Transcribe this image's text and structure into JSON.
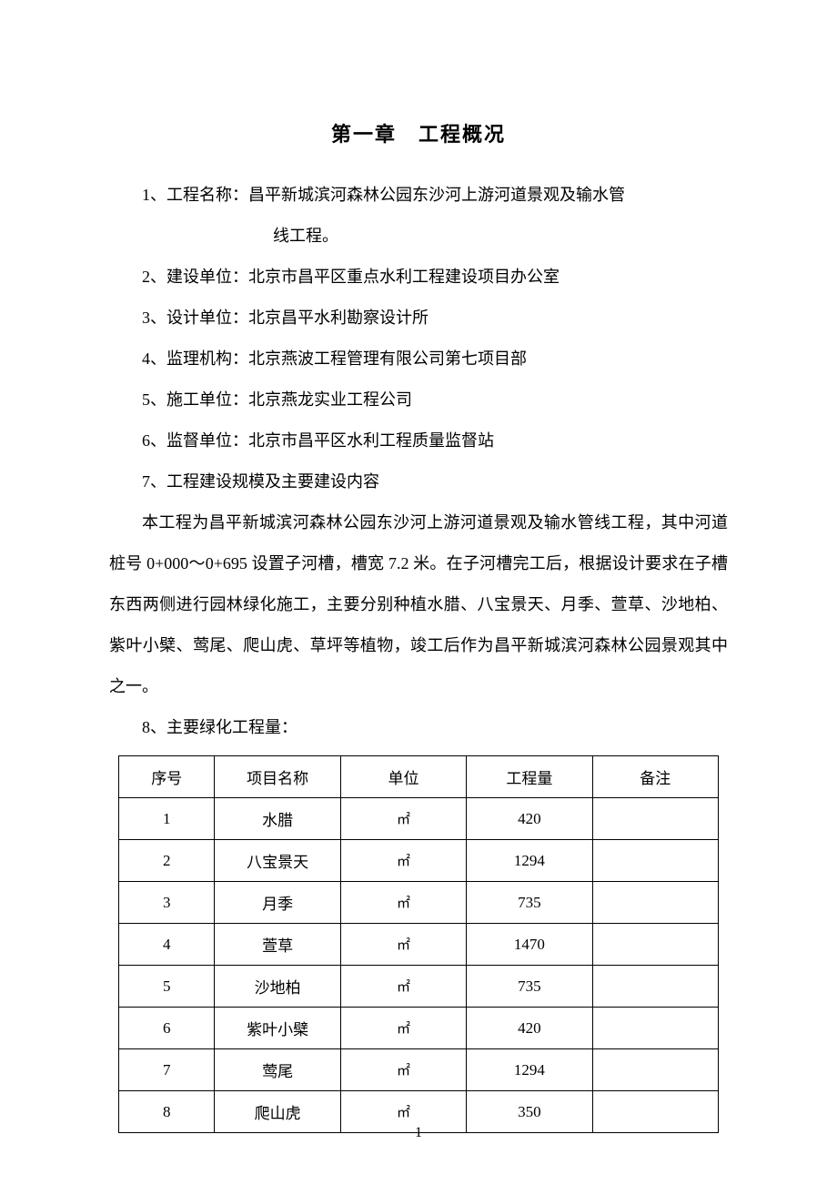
{
  "chapter_title": "第一章　工程概况",
  "items": [
    {
      "num": "1、",
      "label": "工程名称：",
      "value": "昌平新城滨河森林公园东沙河上游河道景观及输水管",
      "continuation": "线工程。"
    },
    {
      "num": "2、",
      "label": "建设单位：",
      "value": "北京市昌平区重点水利工程建设项目办公室"
    },
    {
      "num": "3、",
      "label": "设计单位：",
      "value": "北京昌平水利勘察设计所"
    },
    {
      "num": "4、",
      "label": "监理机构：",
      "value": "北京燕波工程管理有限公司第七项目部"
    },
    {
      "num": "5、",
      "label": "施工单位：",
      "value": "北京燕龙实业工程公司"
    },
    {
      "num": "6、",
      "label": "监督单位：",
      "value": "北京市昌平区水利工程质量监督站"
    },
    {
      "num": "7、",
      "label": "工程建设规模及主要建设内容",
      "value": ""
    }
  ],
  "paragraph": "本工程为昌平新城滨河森林公园东沙河上游河道景观及输水管线工程，其中河道桩号 0+000～0+695 设置子河槽，槽宽 7.2 米。在子河槽完工后，根据设计要求在子槽东西两侧进行园林绿化施工，主要分别种植水腊、八宝景天、月季、萱草、沙地柏、紫叶小檗、莺尾、爬山虎、草坪等植物，竣工后作为昌平新城滨河森林公园景观其中之一。",
  "item8": "8、主要绿化工程量：",
  "table": {
    "columns": [
      "序号",
      "项目名称",
      "单位",
      "工程量",
      "备注"
    ],
    "rows": [
      {
        "seq": "1",
        "name": "水腊",
        "unit": "㎡",
        "qty": "420",
        "remark": ""
      },
      {
        "seq": "2",
        "name": "八宝景天",
        "unit": "㎡",
        "qty": "1294",
        "remark": ""
      },
      {
        "seq": "3",
        "name": "月季",
        "unit": "㎡",
        "qty": "735",
        "remark": ""
      },
      {
        "seq": "4",
        "name": "萱草",
        "unit": "㎡",
        "qty": "1470",
        "remark": ""
      },
      {
        "seq": "5",
        "name": "沙地柏",
        "unit": "㎡",
        "qty": "735",
        "remark": ""
      },
      {
        "seq": "6",
        "name": "紫叶小檗",
        "unit": "㎡",
        "qty": "420",
        "remark": ""
      },
      {
        "seq": "7",
        "name": "莺尾",
        "unit": "㎡",
        "qty": "1294",
        "remark": ""
      },
      {
        "seq": "8",
        "name": "爬山虎",
        "unit": "㎡",
        "qty": "350",
        "remark": ""
      }
    ]
  },
  "page_number": "1"
}
